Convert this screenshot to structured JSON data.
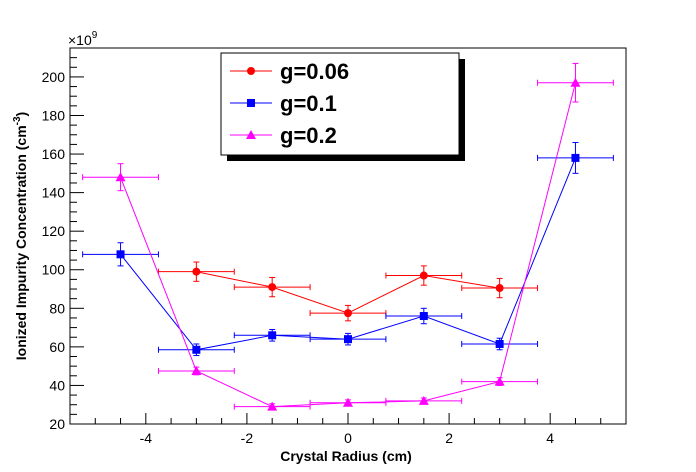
{
  "chart_data": {
    "type": "scatter",
    "title": "",
    "xlabel": "Crystal Radius (cm)",
    "ylabel_main": "Ionized Impurity Concentration (cm",
    "ylabel_sup": "-3",
    "ylabel_close": ")",
    "y_multiplier": "×10",
    "y_multiplier_exp": "9",
    "xlim": [
      -5.5,
      5.5
    ],
    "ylim": [
      20,
      215
    ],
    "x_ticks": [
      -4,
      -2,
      0,
      2,
      4
    ],
    "x_tick_labels": [
      "-4",
      "-2",
      "0",
      "2",
      "4"
    ],
    "y_ticks": [
      20,
      40,
      60,
      80,
      100,
      120,
      140,
      160,
      180,
      200
    ],
    "y_tick_labels": [
      "20",
      "40",
      "60",
      "80",
      "100",
      "120",
      "140",
      "160",
      "180",
      "200"
    ],
    "legend_position": "top-center",
    "series": [
      {
        "name": "g=0.06",
        "color": "#ff0000",
        "marker": "circle",
        "points": [
          {
            "x": -3.0,
            "y": 99,
            "xerr": 0.75,
            "yerr": 5
          },
          {
            "x": -1.5,
            "y": 91,
            "xerr": 0.75,
            "yerr": 5
          },
          {
            "x": 0.0,
            "y": 77.5,
            "xerr": 0.75,
            "yerr": 4
          },
          {
            "x": 1.5,
            "y": 97,
            "xerr": 0.75,
            "yerr": 5
          },
          {
            "x": 3.0,
            "y": 90.5,
            "xerr": 0.75,
            "yerr": 5
          }
        ]
      },
      {
        "name": "g=0.1",
        "color": "#0000ff",
        "marker": "square",
        "points": [
          {
            "x": -4.5,
            "y": 108,
            "xerr": 0.75,
            "yerr": 6
          },
          {
            "x": -3.0,
            "y": 58.5,
            "xerr": 0.75,
            "yerr": 3
          },
          {
            "x": -1.5,
            "y": 66,
            "xerr": 0.75,
            "yerr": 3
          },
          {
            "x": 0.0,
            "y": 64,
            "xerr": 0.75,
            "yerr": 3
          },
          {
            "x": 1.5,
            "y": 76,
            "xerr": 0.75,
            "yerr": 4
          },
          {
            "x": 3.0,
            "y": 61.5,
            "xerr": 0.75,
            "yerr": 3
          },
          {
            "x": 4.5,
            "y": 158,
            "xerr": 0.75,
            "yerr": 8
          }
        ]
      },
      {
        "name": "g=0.2",
        "color": "#ff00ff",
        "marker": "triangle",
        "points": [
          {
            "x": -4.5,
            "y": 148,
            "xerr": 0.75,
            "yerr": 7
          },
          {
            "x": -3.0,
            "y": 47.5,
            "xerr": 0.75,
            "yerr": 2
          },
          {
            "x": -1.5,
            "y": 29,
            "xerr": 0.75,
            "yerr": 1.5
          },
          {
            "x": 0.0,
            "y": 31,
            "xerr": 0.75,
            "yerr": 1.5
          },
          {
            "x": 1.5,
            "y": 32,
            "xerr": 0.75,
            "yerr": 1.5
          },
          {
            "x": 3.0,
            "y": 42,
            "xerr": 0.75,
            "yerr": 2
          },
          {
            "x": 4.5,
            "y": 197,
            "xerr": 0.75,
            "yerr": 10
          }
        ]
      }
    ]
  }
}
